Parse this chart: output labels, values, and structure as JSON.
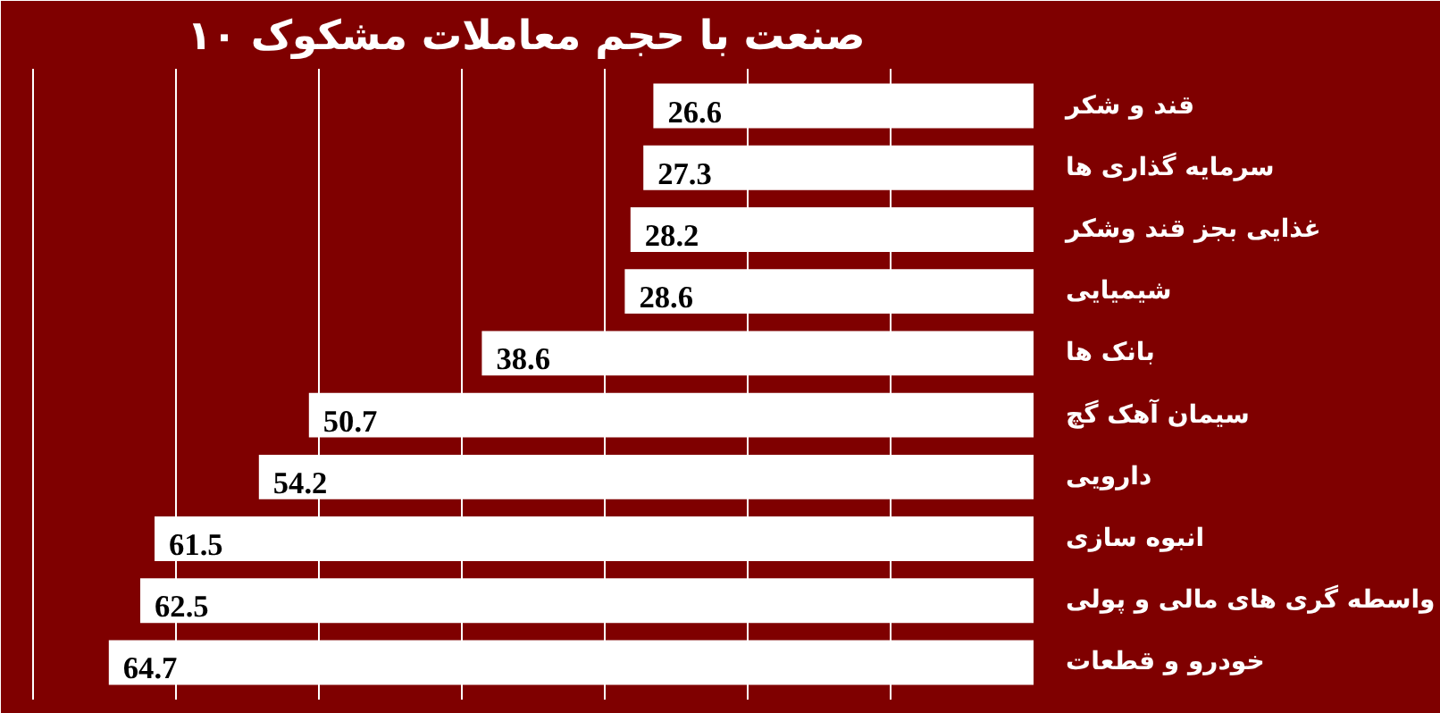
{
  "chart_data": {
    "type": "bar",
    "orientation": "horizontal",
    "title": "۱۰ صنعت با حجم معاملات مشکوک",
    "categories": [
      "قند و شکر",
      "سرمایه گذاری ها",
      "غذایی بجز قند وشکر",
      "شیمیایی",
      "بانک ها",
      "سیمان آهک گچ",
      "دارویی",
      "انبوه سازی",
      "واسطه گری های مالی و پولی",
      "خودرو و قطعات"
    ],
    "values": [
      26.6,
      27.3,
      28.2,
      28.6,
      38.6,
      50.7,
      54.2,
      61.5,
      62.5,
      64.7
    ],
    "color": "#ffffff",
    "data_labels": true,
    "xlim": [
      71,
      0
    ],
    "xticks": [
      0,
      10,
      20,
      30,
      40,
      50,
      60,
      70
    ],
    "grid": "x",
    "tick_labels": "y"
  }
}
